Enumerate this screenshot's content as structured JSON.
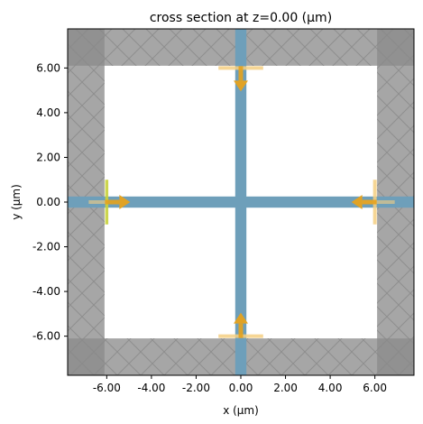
{
  "chart_data": {
    "type": "other",
    "title": "cross section at z=0.00 (µm)",
    "xlabel": "x (µm)",
    "ylabel": "y (µm)",
    "xlim": [
      -7.75,
      7.75
    ],
    "ylim": [
      -7.75,
      7.75
    ],
    "xticks": [
      -6.0,
      -4.0,
      -2.0,
      0.0,
      2.0,
      4.0,
      6.0
    ],
    "yticks": [
      -6.0,
      -4.0,
      -2.0,
      0.0,
      2.0,
      4.0,
      6.0
    ],
    "xtick_labels": [
      "-6.00",
      "-4.00",
      "-2.00",
      "0.00",
      "2.00",
      "4.00",
      "6.00"
    ],
    "ytick_labels": [
      "-6.00",
      "-4.00",
      "-2.00",
      "0.00",
      "2.00",
      "4.00",
      "6.00"
    ],
    "grid": false,
    "regions": {
      "simulation_interior": [
        -6.1,
        6.1
      ],
      "pml_hatched_border": true,
      "corner_darker_overlap": true
    },
    "waveguides": [
      {
        "orientation": "horizontal",
        "center": 0.0,
        "width": 0.5,
        "span": [
          -7.75,
          7.75
        ]
      },
      {
        "orientation": "vertical",
        "center": 0.0,
        "width": 0.5,
        "span": [
          -7.75,
          7.75
        ]
      }
    ],
    "source": {
      "x": -6.0,
      "y": 0.0,
      "length": 2.0,
      "direction": "+x"
    },
    "monitors": [
      {
        "x": 6.0,
        "y": 0.0,
        "length": 2.0,
        "orientation": "vertical",
        "arrow": "-x"
      },
      {
        "x": 0.0,
        "y": 6.0,
        "length": 2.0,
        "orientation": "horizontal",
        "arrow": "-y"
      },
      {
        "x": 0.0,
        "y": -6.0,
        "length": 2.0,
        "orientation": "horizontal",
        "arrow": "+y"
      }
    ],
    "colors": {
      "pml": "#a6a6a6",
      "pml_corner": "#8a8a8a",
      "waveguide": "#6e9fba",
      "monitor": "#f5cf82",
      "arrow": "#e6a21c",
      "source": "#c8d23c",
      "hatch": "#8e8e8e"
    }
  }
}
